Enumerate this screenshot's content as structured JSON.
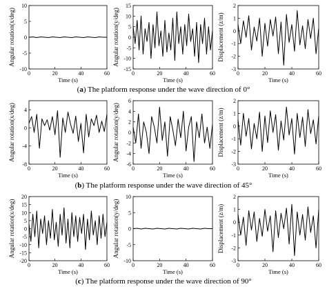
{
  "captions": [
    {
      "label": "a",
      "text": "The platform response under the wave direction of 0°"
    },
    {
      "label": "b",
      "text": "The platform response under the wave direction of 45°"
    },
    {
      "label": "c",
      "text": "The platform response under the wave direction of 90°"
    }
  ],
  "chart_data": [
    {
      "type": "line",
      "row": "a",
      "title": "",
      "xlabel": "Time (s)",
      "ylabel": "Angular rotation(x/deg)",
      "xlim": [
        0,
        60
      ],
      "ylim": [
        -10,
        10
      ],
      "xticks": [
        0,
        20,
        40,
        60
      ],
      "yticks": [
        -10,
        -5,
        0,
        5,
        10
      ],
      "series": [
        {
          "name": "",
          "x": [
            0,
            3,
            6,
            9,
            12,
            15,
            18,
            21,
            24,
            27,
            30,
            33,
            36,
            39,
            42,
            45,
            48,
            51,
            54,
            57,
            60
          ],
          "y": [
            0,
            0.1,
            -0.1,
            0.1,
            0,
            -0.1,
            0.1,
            0,
            -0.1,
            0.1,
            0,
            -0.1,
            0.1,
            0,
            -0.1,
            0.1,
            0,
            -0.1,
            0.1,
            0,
            0
          ]
        }
      ]
    },
    {
      "type": "line",
      "row": "a",
      "title": "",
      "xlabel": "Time (s)",
      "ylabel": "Angular rotation(y/deg)",
      "xlim": [
        0,
        60
      ],
      "ylim": [
        -15,
        15
      ],
      "xticks": [
        0,
        20,
        40,
        60
      ],
      "yticks": [
        -15,
        -10,
        -5,
        0,
        5,
        10,
        15
      ],
      "series": [
        {
          "name": "",
          "x": [
            0,
            1.5,
            3,
            4.5,
            6,
            7.5,
            9,
            10.5,
            12,
            13.5,
            15,
            16.5,
            18,
            19.5,
            21,
            22.5,
            24,
            25.5,
            27,
            28.5,
            30,
            31.5,
            33,
            34.5,
            36,
            37.5,
            39,
            40.5,
            42,
            43.5,
            45,
            46.5,
            48,
            49.5,
            51,
            52.5,
            54,
            55.5,
            57,
            58.5,
            60
          ],
          "y": [
            5,
            -3,
            8,
            -6,
            10,
            -8,
            4,
            -2,
            7,
            -10,
            6,
            -5,
            12,
            -4,
            3,
            -9,
            8,
            -7,
            2,
            -6,
            9,
            -11,
            12,
            -3,
            5,
            -8,
            6,
            -4,
            11,
            -2,
            4,
            -9,
            7,
            -12,
            6,
            -3,
            9,
            -8,
            5,
            -6,
            3
          ]
        }
      ]
    },
    {
      "type": "line",
      "row": "a",
      "title": "",
      "xlabel": "Time (s)",
      "ylabel": "Displacement (z/m)",
      "xlim": [
        0,
        60
      ],
      "ylim": [
        -3,
        2
      ],
      "xticks": [
        0,
        20,
        40,
        60
      ],
      "yticks": [
        -3,
        -2,
        -1,
        0,
        1,
        2
      ],
      "series": [
        {
          "name": "",
          "x": [
            0,
            2,
            4,
            6,
            8,
            10,
            12,
            14,
            16,
            18,
            20,
            22,
            24,
            26,
            28,
            30,
            32,
            34,
            36,
            38,
            40,
            42,
            44,
            46,
            48,
            50,
            52,
            54,
            56,
            58,
            60
          ],
          "y": [
            0.5,
            -1,
            0.8,
            -0.5,
            1.2,
            -1.5,
            0.3,
            -0.8,
            1,
            -2,
            0.6,
            -1.2,
            0.9,
            -0.4,
            1.1,
            -1.8,
            0.7,
            -2.7,
            1.3,
            -0.9,
            0.5,
            -1.6,
            1.6,
            -1.1,
            0.4,
            -1.4,
            0.9,
            -0.6,
            1,
            -1.8,
            0.2
          ]
        }
      ]
    },
    {
      "type": "line",
      "row": "b",
      "title": "",
      "xlabel": "Time (s)",
      "ylabel": "Angular rotation(x/deg)",
      "xlim": [
        0,
        60
      ],
      "ylim": [
        -8,
        6
      ],
      "xticks": [
        0,
        20,
        40,
        60
      ],
      "yticks": [
        -8,
        -4,
        0,
        4
      ],
      "series": [
        {
          "name": "",
          "x": [
            0,
            2,
            4,
            6,
            8,
            10,
            12,
            14,
            16,
            18,
            20,
            22,
            24,
            26,
            28,
            30,
            32,
            34,
            36,
            38,
            40,
            42,
            44,
            46,
            48,
            50,
            52,
            54,
            56,
            58,
            60
          ],
          "y": [
            1,
            2.5,
            -1,
            3,
            -4.5,
            2,
            0.5,
            1.8,
            -0.5,
            2.5,
            -1.5,
            3.8,
            -6.5,
            2.2,
            -1,
            3.5,
            0.8,
            -1.2,
            2.6,
            -3,
            1,
            -5.5,
            3,
            -2,
            2,
            0.5,
            2.8,
            -1,
            1.5,
            -0.8,
            3
          ]
        }
      ]
    },
    {
      "type": "line",
      "row": "b",
      "title": "",
      "xlabel": "Time (s)",
      "ylabel": "Angular rotation(y/deg)",
      "xlim": [
        0,
        60
      ],
      "ylim": [
        -6,
        6
      ],
      "xticks": [
        0,
        20,
        40,
        60
      ],
      "yticks": [
        -6,
        -4,
        -2,
        0,
        2,
        4,
        6
      ],
      "series": [
        {
          "name": "",
          "x": [
            0,
            2,
            4,
            6,
            8,
            10,
            12,
            14,
            16,
            18,
            20,
            22,
            24,
            26,
            28,
            30,
            32,
            34,
            36,
            38,
            40,
            42,
            44,
            46,
            48,
            50,
            52,
            54,
            56,
            58,
            60
          ],
          "y": [
            1,
            -2,
            3.5,
            -3,
            2,
            0,
            -4,
            3,
            1,
            -2,
            4.8,
            -1.5,
            2,
            -4.5,
            3,
            0.5,
            -2.5,
            2.5,
            -1,
            4,
            -3.5,
            1,
            3,
            -5.5,
            2,
            -1,
            3.5,
            -2,
            1,
            -3,
            1.5
          ]
        }
      ]
    },
    {
      "type": "line",
      "row": "b",
      "title": "",
      "xlabel": "Time (s)",
      "ylabel": "Displacement (z/m)",
      "xlim": [
        0,
        60
      ],
      "ylim": [
        -3,
        2
      ],
      "xticks": [
        0,
        20,
        40,
        60
      ],
      "yticks": [
        -3,
        -2,
        -1,
        0,
        1,
        2
      ],
      "series": [
        {
          "name": "",
          "x": [
            0,
            2,
            4,
            6,
            8,
            10,
            12,
            14,
            16,
            18,
            20,
            22,
            24,
            26,
            28,
            30,
            32,
            34,
            36,
            38,
            40,
            42,
            44,
            46,
            48,
            50,
            52,
            54,
            56,
            58,
            60
          ],
          "y": [
            0.5,
            -1.5,
            1,
            -0.8,
            0.6,
            -1.8,
            0.2,
            -1,
            1.1,
            -2,
            0.8,
            -1.3,
            1.2,
            -0.5,
            0.9,
            -1.9,
            0.4,
            -1.1,
            1.5,
            -0.7,
            0.6,
            -2.2,
            1,
            -0.9,
            0.7,
            -1.6,
            1.3,
            -0.6,
            0.5,
            -1.4,
            0.8
          ]
        }
      ]
    },
    {
      "type": "line",
      "row": "c",
      "title": "",
      "xlabel": "Time (s)",
      "ylabel": "Angular rotation(x/deg)",
      "xlim": [
        0,
        60
      ],
      "ylim": [
        -20,
        20
      ],
      "xticks": [
        0,
        20,
        40,
        60
      ],
      "yticks": [
        -20,
        -15,
        -10,
        -5,
        0,
        5,
        10,
        15,
        20
      ],
      "series": [
        {
          "name": "",
          "x": [
            0,
            1.5,
            3,
            4.5,
            6,
            7.5,
            9,
            10.5,
            12,
            13.5,
            15,
            16.5,
            18,
            19.5,
            21,
            22.5,
            24,
            25.5,
            27,
            28.5,
            30,
            31.5,
            33,
            34.5,
            36,
            37.5,
            39,
            40.5,
            42,
            43.5,
            45,
            46.5,
            48,
            49.5,
            51,
            52.5,
            54,
            55.5,
            57,
            58.5,
            60
          ],
          "y": [
            3,
            -8,
            9,
            -5,
            11,
            -12,
            6,
            -3,
            8,
            -10,
            5,
            -6,
            12,
            -7,
            4,
            -11,
            9,
            -4,
            13,
            -9,
            6,
            -12,
            10,
            -5,
            8,
            -8,
            7,
            -3,
            9,
            -13,
            6,
            -7,
            11,
            -4,
            5,
            -10,
            8,
            -6,
            9,
            -5,
            4
          ]
        }
      ]
    },
    {
      "type": "line",
      "row": "c",
      "title": "",
      "xlabel": "Time (s)",
      "ylabel": "Angular rotation(y/deg)",
      "xlim": [
        0,
        60
      ],
      "ylim": [
        -10,
        10
      ],
      "xticks": [
        0,
        20,
        40,
        60
      ],
      "yticks": [
        -10,
        -5,
        0,
        5,
        10
      ],
      "series": [
        {
          "name": "",
          "x": [
            0,
            3,
            6,
            9,
            12,
            15,
            18,
            21,
            24,
            27,
            30,
            33,
            36,
            39,
            42,
            45,
            48,
            51,
            54,
            57,
            60
          ],
          "y": [
            0,
            0.1,
            -0.1,
            0.1,
            0,
            -0.1,
            0.1,
            0,
            -0.1,
            0.1,
            0,
            -0.1,
            0.1,
            0,
            -0.1,
            0.1,
            0,
            -0.1,
            0.1,
            0,
            0
          ]
        }
      ]
    },
    {
      "type": "line",
      "row": "c",
      "title": "",
      "xlabel": "Time (s)",
      "ylabel": "Displacement (z/m)",
      "xlim": [
        0,
        60
      ],
      "ylim": [
        -3,
        2
      ],
      "xticks": [
        0,
        20,
        40,
        60
      ],
      "yticks": [
        -3,
        -2,
        -1,
        0,
        1,
        2
      ],
      "series": [
        {
          "name": "",
          "x": [
            0,
            2,
            4,
            6,
            8,
            10,
            12,
            14,
            16,
            18,
            20,
            22,
            24,
            26,
            28,
            30,
            32,
            34,
            36,
            38,
            40,
            42,
            44,
            46,
            48,
            50,
            52,
            54,
            56,
            58,
            60
          ],
          "y": [
            0.6,
            -1,
            0.4,
            -1.8,
            0.9,
            -0.6,
            0.8,
            -1.5,
            0.3,
            -1.1,
            1,
            -0.7,
            0.5,
            -2.3,
            0.9,
            -1.2,
            0.7,
            -0.5,
            1.1,
            -1.7,
            1.4,
            -2.6,
            0.8,
            -1,
            0.6,
            -1.4,
            1.2,
            -0.8,
            0.5,
            -2,
            1
          ]
        }
      ]
    }
  ]
}
